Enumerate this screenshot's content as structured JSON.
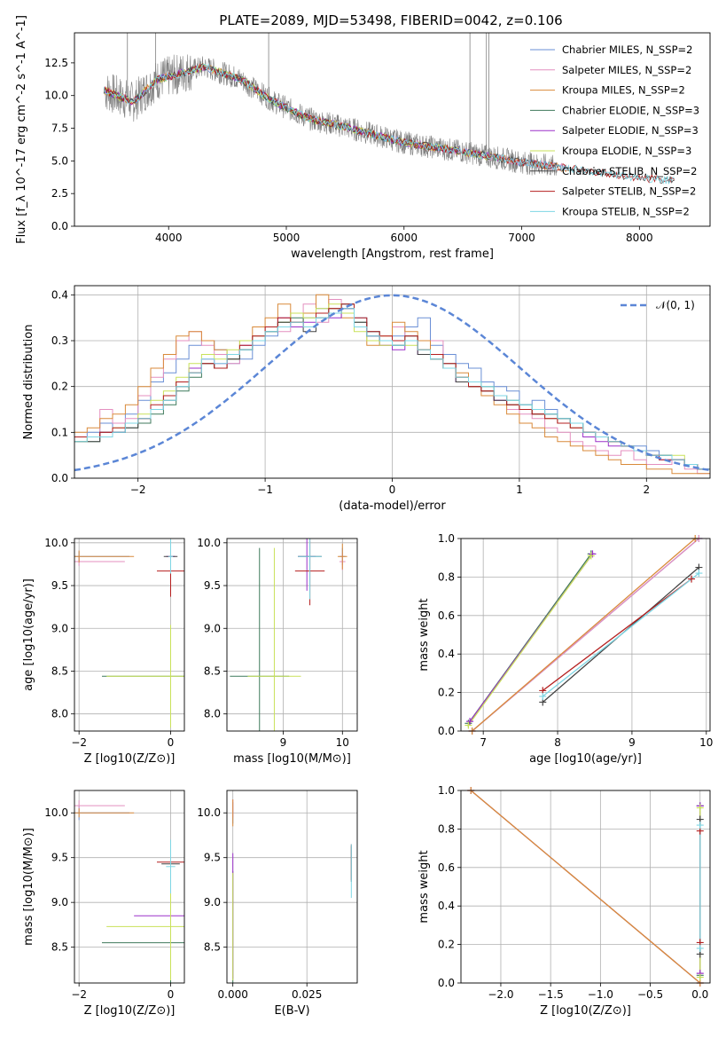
{
  "figure_title": "PLATE=2089, MJD=53498, FIBERID=0042, z=0.106",
  "model_colors": [
    "#6a8fd6",
    "#e48fbf",
    "#d98a3a",
    "#3f7a5c",
    "#9b30c9",
    "#c9e15a",
    "#444444",
    "#b41f1f",
    "#7ed6e4"
  ],
  "chart_data": [
    {
      "type": "line",
      "name": "spectrum",
      "title": "PLATE=2089, MJD=53498, FIBERID=0042, z=0.106",
      "xlabel": "wavelength [Angstrom, rest frame]",
      "ylabel": "Flux [f_λ 10^-17 erg cm^-2 s^-1 A^-1]",
      "xlim": [
        3200,
        8600
      ],
      "ylim": [
        0,
        14.8
      ],
      "xticks": [
        4000,
        5000,
        6000,
        7000,
        8000
      ],
      "yticks": [
        0.0,
        2.5,
        5.0,
        7.5,
        10.0,
        12.5
      ],
      "grid": false,
      "legend_position": "top-right",
      "data_color": "#808080",
      "legend": [
        "Chabrier MILES, N_SSP=2",
        "Salpeter MILES, N_SSP=2",
        "Kroupa MILES, N_SSP=2",
        "Chabrier ELODIE, N_SSP=3",
        "Salpeter ELODIE, N_SSP=3",
        "Kroupa ELODIE, N_SSP=3",
        "Chabrier STELIB, N_SSP=2",
        "Salpeter STELIB, N_SSP=2",
        "Kroupa STELIB, N_SSP=2"
      ],
      "continuum": {
        "x": [
          3450,
          3700,
          3900,
          4300,
          4600,
          4900,
          5200,
          5500,
          6000,
          6500,
          7000,
          7500,
          8000,
          8300
        ],
        "y": [
          10.4,
          9.5,
          11.2,
          12.2,
          11.3,
          9.5,
          8.2,
          7.6,
          6.4,
          5.7,
          4.9,
          4.3,
          3.7,
          3.5
        ]
      }
    },
    {
      "type": "step",
      "name": "residual-histogram",
      "xlabel": "(data-model)/error",
      "ylabel": "Normed distribution",
      "xlim": [
        -2.5,
        2.5
      ],
      "ylim": [
        0,
        0.42
      ],
      "xticks": [
        -2,
        -1,
        0,
        1,
        2
      ],
      "yticks": [
        0.0,
        0.1,
        0.2,
        0.3,
        0.4
      ],
      "grid": true,
      "legend_position": "top-right",
      "gaussian_label": "𝒩(0, 1)",
      "gaussian_color": "#5b86d6",
      "bin_start": -2.5,
      "bin_width": 0.1,
      "series_values": [
        [
          0.09,
          0.1,
          0.12,
          0.1,
          0.14,
          0.17,
          0.21,
          0.23,
          0.26,
          0.29,
          0.3,
          0.28,
          0.25,
          0.26,
          0.29,
          0.31,
          0.34,
          0.33,
          0.35,
          0.37,
          0.36,
          0.38,
          0.35,
          0.32,
          0.3,
          0.31,
          0.33,
          0.35,
          0.29,
          0.27,
          0.25,
          0.24,
          0.21,
          0.2,
          0.19,
          0.16,
          0.17,
          0.15,
          0.13,
          0.12,
          0.1,
          0.09,
          0.08,
          0.07,
          0.07,
          0.06,
          0.05,
          0.04,
          0.03,
          0.02
        ],
        [
          0.08,
          0.09,
          0.15,
          0.12,
          0.13,
          0.18,
          0.22,
          0.26,
          0.3,
          0.32,
          0.29,
          0.27,
          0.25,
          0.28,
          0.3,
          0.33,
          0.32,
          0.36,
          0.38,
          0.34,
          0.39,
          0.37,
          0.33,
          0.31,
          0.29,
          0.33,
          0.31,
          0.28,
          0.3,
          0.25,
          0.22,
          0.2,
          0.19,
          0.17,
          0.15,
          0.14,
          0.13,
          0.11,
          0.1,
          0.08,
          0.07,
          0.06,
          0.05,
          0.06,
          0.04,
          0.03,
          0.03,
          0.04,
          0.02,
          0.01
        ],
        [
          0.1,
          0.11,
          0.13,
          0.14,
          0.16,
          0.2,
          0.24,
          0.27,
          0.31,
          0.32,
          0.3,
          0.28,
          0.26,
          0.3,
          0.33,
          0.35,
          0.38,
          0.34,
          0.36,
          0.4,
          0.37,
          0.35,
          0.33,
          0.29,
          0.31,
          0.34,
          0.32,
          0.3,
          0.26,
          0.24,
          0.23,
          0.2,
          0.18,
          0.16,
          0.14,
          0.12,
          0.11,
          0.09,
          0.08,
          0.07,
          0.06,
          0.05,
          0.04,
          0.03,
          0.03,
          0.02,
          0.02,
          0.01,
          0.01,
          0.01
        ],
        [
          0.08,
          0.08,
          0.09,
          0.1,
          0.11,
          0.12,
          0.14,
          0.16,
          0.19,
          0.22,
          0.25,
          0.24,
          0.26,
          0.28,
          0.3,
          0.32,
          0.34,
          0.35,
          0.33,
          0.36,
          0.37,
          0.38,
          0.34,
          0.32,
          0.3,
          0.29,
          0.31,
          0.28,
          0.27,
          0.25,
          0.22,
          0.21,
          0.2,
          0.18,
          0.17,
          0.16,
          0.15,
          0.14,
          0.13,
          0.12,
          0.1,
          0.09,
          0.08,
          0.07,
          0.06,
          0.05,
          0.05,
          0.04,
          0.03,
          0.02
        ],
        [
          0.09,
          0.09,
          0.1,
          0.1,
          0.12,
          0.13,
          0.15,
          0.18,
          0.21,
          0.24,
          0.26,
          0.25,
          0.27,
          0.29,
          0.31,
          0.33,
          0.35,
          0.33,
          0.34,
          0.36,
          0.35,
          0.37,
          0.33,
          0.31,
          0.29,
          0.28,
          0.3,
          0.27,
          0.26,
          0.24,
          0.21,
          0.2,
          0.19,
          0.17,
          0.16,
          0.15,
          0.14,
          0.13,
          0.12,
          0.11,
          0.09,
          0.08,
          0.07,
          0.07,
          0.06,
          0.05,
          0.04,
          0.04,
          0.03,
          0.02
        ],
        [
          0.08,
          0.09,
          0.09,
          0.11,
          0.12,
          0.14,
          0.17,
          0.19,
          0.22,
          0.25,
          0.27,
          0.26,
          0.28,
          0.3,
          0.31,
          0.33,
          0.34,
          0.36,
          0.35,
          0.37,
          0.38,
          0.36,
          0.32,
          0.3,
          0.29,
          0.3,
          0.29,
          0.28,
          0.26,
          0.24,
          0.22,
          0.2,
          0.19,
          0.18,
          0.16,
          0.15,
          0.14,
          0.13,
          0.12,
          0.11,
          0.1,
          0.09,
          0.08,
          0.07,
          0.06,
          0.05,
          0.05,
          0.05,
          0.03,
          0.02
        ],
        [
          0.08,
          0.08,
          0.1,
          0.1,
          0.11,
          0.13,
          0.15,
          0.17,
          0.2,
          0.23,
          0.25,
          0.24,
          0.26,
          0.28,
          0.3,
          0.32,
          0.34,
          0.34,
          0.32,
          0.35,
          0.36,
          0.37,
          0.34,
          0.31,
          0.3,
          0.29,
          0.3,
          0.27,
          0.26,
          0.24,
          0.21,
          0.2,
          0.19,
          0.17,
          0.16,
          0.15,
          0.14,
          0.14,
          0.13,
          0.12,
          0.1,
          0.09,
          0.08,
          0.07,
          0.06,
          0.05,
          0.05,
          0.04,
          0.03,
          0.02
        ],
        [
          0.09,
          0.09,
          0.1,
          0.11,
          0.12,
          0.13,
          0.16,
          0.18,
          0.21,
          0.23,
          0.25,
          0.24,
          0.27,
          0.29,
          0.31,
          0.33,
          0.35,
          0.34,
          0.33,
          0.36,
          0.37,
          0.38,
          0.35,
          0.32,
          0.31,
          0.3,
          0.31,
          0.28,
          0.27,
          0.25,
          0.22,
          0.2,
          0.19,
          0.18,
          0.16,
          0.15,
          0.14,
          0.13,
          0.12,
          0.11,
          0.1,
          0.09,
          0.08,
          0.07,
          0.06,
          0.05,
          0.04,
          0.04,
          0.03,
          0.02
        ],
        [
          0.08,
          0.09,
          0.09,
          0.1,
          0.12,
          0.13,
          0.15,
          0.17,
          0.2,
          0.23,
          0.26,
          0.25,
          0.27,
          0.28,
          0.3,
          0.32,
          0.33,
          0.34,
          0.33,
          0.35,
          0.36,
          0.37,
          0.33,
          0.31,
          0.3,
          0.29,
          0.3,
          0.28,
          0.26,
          0.24,
          0.22,
          0.21,
          0.2,
          0.18,
          0.17,
          0.16,
          0.15,
          0.14,
          0.13,
          0.12,
          0.1,
          0.09,
          0.08,
          0.07,
          0.06,
          0.05,
          0.05,
          0.04,
          0.03,
          0.02
        ]
      ]
    },
    {
      "type": "errorbar",
      "name": "age-vs-Z",
      "xlabel": "Z [log10(Z/Z⊙)]",
      "ylabel": "age [log10(age/yr)]",
      "xlim": [
        -2.1,
        0.3
      ],
      "ylim": [
        7.8,
        10.05
      ],
      "xticks": [
        -2,
        0
      ],
      "yticks": [
        8.0,
        8.5,
        9.0,
        9.5,
        10.0
      ],
      "grid": true,
      "points": [
        {
          "s": 0,
          "x": -2.0,
          "y": 9.84,
          "xerr": 1.1,
          "yerr": 0.06
        },
        {
          "s": 1,
          "x": -2.0,
          "y": 9.78,
          "xerr": 1.0,
          "yerr": 0.05
        },
        {
          "s": 2,
          "x": -2.0,
          "y": 9.84,
          "xerr": 1.2,
          "yerr": 0.07
        },
        {
          "s": 3,
          "x": 0.0,
          "y": 8.44,
          "xerr": 1.5,
          "yerr": 0.5
        },
        {
          "s": 4,
          "x": 0.0,
          "y": 9.84,
          "xerr": 0.1,
          "yerr": 0.15
        },
        {
          "s": 5,
          "x": 0.0,
          "y": 8.44,
          "xerr": 1.4,
          "yerr": 0.6
        },
        {
          "s": 6,
          "x": 0.0,
          "y": 9.84,
          "xerr": 0.15,
          "yerr": 0.1
        },
        {
          "s": 7,
          "x": 0.0,
          "y": 9.67,
          "xerr": 0.3,
          "yerr": 0.3
        },
        {
          "s": 8,
          "x": 0.0,
          "y": 9.84,
          "xerr": 0.05,
          "yerr": 0.2
        }
      ]
    },
    {
      "type": "errorbar",
      "name": "age-vs-mass",
      "xlabel": "mass [log10(M/M⊙)]",
      "ylabel": "",
      "xlim": [
        8.05,
        10.25
      ],
      "ylim": [
        7.8,
        10.05
      ],
      "xticks": [
        9,
        10
      ],
      "yticks": [
        8.0,
        8.5,
        9.0,
        9.5,
        10.0
      ],
      "grid": true,
      "points": [
        {
          "s": 0,
          "x": 10.0,
          "y": 9.84,
          "xerr": 0.05,
          "yerr": 0.1
        },
        {
          "s": 1,
          "x": 10.0,
          "y": 9.78,
          "xerr": 0.05,
          "yerr": 0.1
        },
        {
          "s": 2,
          "x": 10.0,
          "y": 9.84,
          "xerr": 0.08,
          "yerr": 0.15
        },
        {
          "s": 3,
          "x": 8.6,
          "y": 8.44,
          "xerr": 0.5,
          "yerr": 1.5
        },
        {
          "s": 4,
          "x": 9.4,
          "y": 9.84,
          "xerr": 0.15,
          "yerr": 0.4
        },
        {
          "s": 5,
          "x": 8.85,
          "y": 8.44,
          "xerr": 0.45,
          "yerr": 1.5
        },
        {
          "s": 6,
          "x": 9.45,
          "y": 9.84,
          "xerr": 0.2,
          "yerr": 0.5
        },
        {
          "s": 7,
          "x": 9.45,
          "y": 9.67,
          "xerr": 0.25,
          "yerr": 0.4
        },
        {
          "s": 8,
          "x": 9.45,
          "y": 9.84,
          "xerr": 0.2,
          "yerr": 0.5
        }
      ]
    },
    {
      "type": "line",
      "name": "mass-weight-vs-age",
      "xlabel": "age [log10(age/yr)]",
      "ylabel": "mass weight",
      "xlim": [
        6.7,
        10.05
      ],
      "ylim": [
        0.0,
        1.0
      ],
      "xticks": [
        7,
        8,
        9,
        10
      ],
      "yticks": [
        0.0,
        0.2,
        0.4,
        0.6,
        0.8,
        1.0
      ],
      "grid": true,
      "series": [
        {
          "s": 0,
          "x": [
            6.85,
            9.9
          ],
          "y": [
            0.0,
            1.0
          ]
        },
        {
          "s": 1,
          "x": [
            6.85,
            9.9
          ],
          "y": [
            0.0,
            1.0
          ]
        },
        {
          "s": 2,
          "x": [
            6.85,
            9.85
          ],
          "y": [
            0.0,
            1.0
          ]
        },
        {
          "s": 3,
          "x": [
            6.8,
            8.45
          ],
          "y": [
            0.04,
            0.92
          ]
        },
        {
          "s": 4,
          "x": [
            6.82,
            8.47
          ],
          "y": [
            0.05,
            0.92
          ]
        },
        {
          "s": 5,
          "x": [
            6.8,
            8.45
          ],
          "y": [
            0.03,
            0.91
          ]
        },
        {
          "s": 6,
          "x": [
            7.8,
            9.9
          ],
          "y": [
            0.15,
            0.85
          ]
        },
        {
          "s": 7,
          "x": [
            7.8,
            9.8
          ],
          "y": [
            0.21,
            0.79
          ]
        },
        {
          "s": 8,
          "x": [
            7.8,
            9.9
          ],
          "y": [
            0.18,
            0.82
          ]
        }
      ]
    },
    {
      "type": "errorbar",
      "name": "mass-vs-Z",
      "xlabel": "Z [log10(Z/Z⊙)]",
      "ylabel": "mass [log10(M/M⊙)]",
      "xlim": [
        -2.1,
        0.3
      ],
      "ylim": [
        8.1,
        10.25
      ],
      "xticks": [
        -2,
        0
      ],
      "yticks": [
        8.5,
        9.0,
        9.5,
        10.0
      ],
      "grid": true,
      "points": [
        {
          "s": 0,
          "x": -2.0,
          "y": 10.0,
          "xerr": 1.1,
          "yerr": 0.08
        },
        {
          "s": 1,
          "x": -2.0,
          "y": 10.08,
          "xerr": 1.0,
          "yerr": 0.06
        },
        {
          "s": 2,
          "x": -2.0,
          "y": 10.0,
          "xerr": 1.2,
          "yerr": 0.05
        },
        {
          "s": 3,
          "x": 0.0,
          "y": 8.55,
          "xerr": 1.5,
          "yerr": 0.5
        },
        {
          "s": 4,
          "x": 0.0,
          "y": 8.85,
          "xerr": 0.8,
          "yerr": 0.5
        },
        {
          "s": 5,
          "x": 0.0,
          "y": 8.73,
          "xerr": 1.4,
          "yerr": 0.6
        },
        {
          "s": 6,
          "x": 0.0,
          "y": 9.43,
          "xerr": 0.2,
          "yerr": 0.15
        },
        {
          "s": 7,
          "x": 0.0,
          "y": 9.45,
          "xerr": 0.3,
          "yerr": 0.2
        },
        {
          "s": 8,
          "x": 0.0,
          "y": 9.4,
          "xerr": 0.1,
          "yerr": 0.3
        }
      ]
    },
    {
      "type": "errorbar",
      "name": "mass-vs-ebv",
      "xlabel": "E(B-V)",
      "ylabel": "",
      "xlim": [
        -0.002,
        0.042
      ],
      "ylim": [
        8.1,
        10.25
      ],
      "xticks": [
        0.0,
        0.025
      ],
      "xtick_labels": [
        "0.000",
        "0.025"
      ],
      "yticks": [
        8.5,
        9.0,
        9.5,
        10.0
      ],
      "grid": true,
      "points": [
        {
          "s": 0,
          "x": 0.0,
          "y": 10.0,
          "xerr": 0.0,
          "yerr": 0.12
        },
        {
          "s": 1,
          "x": 0.0,
          "y": 10.05,
          "xerr": 0.0,
          "yerr": 0.1
        },
        {
          "s": 2,
          "x": 0.0,
          "y": 10.0,
          "xerr": 0.0,
          "yerr": 0.15
        },
        {
          "s": 3,
          "x": 0.0,
          "y": 8.55,
          "xerr": 0.0,
          "yerr": 0.8
        },
        {
          "s": 4,
          "x": 0.0,
          "y": 8.85,
          "xerr": 0.0,
          "yerr": 0.7
        },
        {
          "s": 5,
          "x": 0.0,
          "y": 8.73,
          "xerr": 0.0,
          "yerr": 0.6
        },
        {
          "s": 6,
          "x": 0.04,
          "y": 9.43,
          "xerr": 0.0,
          "yerr": 0.2
        },
        {
          "s": 7,
          "x": 0.04,
          "y": 9.45,
          "xerr": 0.0,
          "yerr": 0.2
        },
        {
          "s": 8,
          "x": 0.04,
          "y": 9.35,
          "xerr": 0.0,
          "yerr": 0.3
        }
      ]
    },
    {
      "type": "line",
      "name": "mass-weight-vs-Z",
      "xlabel": "Z [log10(Z/Z⊙)]",
      "ylabel": "mass weight",
      "xlim": [
        -2.4,
        0.1
      ],
      "ylim": [
        0.0,
        1.0
      ],
      "xticks": [
        -2.0,
        -1.5,
        -1.0,
        -0.5,
        0.0
      ],
      "grid": true,
      "yticks": [
        0.0,
        0.2,
        0.4,
        0.6,
        0.8,
        1.0
      ],
      "series": [
        {
          "s": 0,
          "x": [
            -2.3,
            0.0
          ],
          "y": [
            1.0,
            0.0
          ]
        },
        {
          "s": 1,
          "x": [
            -2.3,
            0.0
          ],
          "y": [
            1.0,
            0.0
          ]
        },
        {
          "s": 2,
          "x": [
            -2.3,
            0.0
          ],
          "y": [
            1.0,
            0.0
          ]
        },
        {
          "s": 3,
          "x": [
            0.0,
            0.0
          ],
          "y": [
            0.04,
            0.92
          ]
        },
        {
          "s": 4,
          "x": [
            0.0,
            0.0
          ],
          "y": [
            0.05,
            0.92
          ]
        },
        {
          "s": 5,
          "x": [
            0.0,
            0.0
          ],
          "y": [
            0.03,
            0.91
          ]
        },
        {
          "s": 6,
          "x": [
            0.0,
            0.0
          ],
          "y": [
            0.15,
            0.85
          ]
        },
        {
          "s": 7,
          "x": [
            0.0,
            0.0
          ],
          "y": [
            0.21,
            0.79
          ]
        },
        {
          "s": 8,
          "x": [
            0.0,
            0.0
          ],
          "y": [
            0.18,
            0.82
          ]
        }
      ]
    }
  ]
}
